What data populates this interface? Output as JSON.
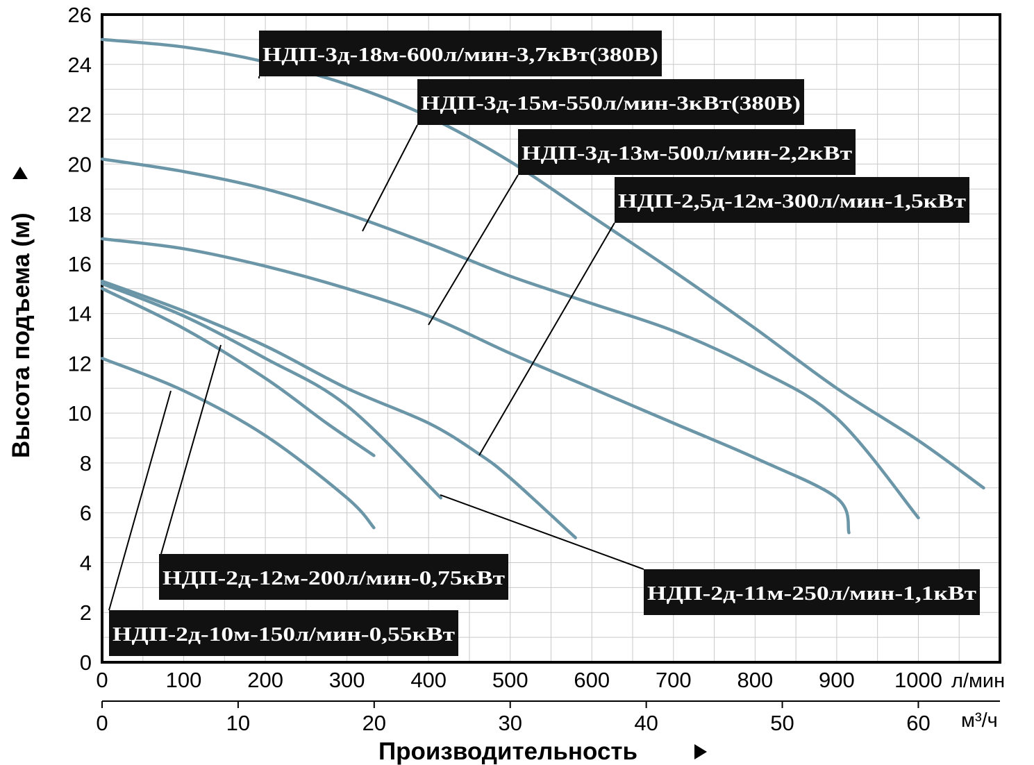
{
  "chart_data": {
    "type": "line",
    "xlabel": "Производительность",
    "ylabel": "Высота подъема (м)",
    "x_unit": "л/мин",
    "x2_unit": "м³/ч",
    "xlim": [
      0,
      1100
    ],
    "ylim": [
      0,
      26
    ],
    "x_ticks": [
      "0",
      "100",
      "200",
      "300",
      "400",
      "500",
      "600",
      "700",
      "800",
      "900",
      "1000"
    ],
    "x2_ticks": [
      "0",
      "10",
      "20",
      "30",
      "40",
      "50",
      "60"
    ],
    "y_ticks": [
      "0",
      "2",
      "4",
      "6",
      "8",
      "10",
      "12",
      "14",
      "16",
      "18",
      "20",
      "22",
      "24",
      "26"
    ],
    "grid": true,
    "series": [
      {
        "name": "НДП-3д-18м-600л/мин-3,7кВт(380В)",
        "points": [
          [
            0,
            25
          ],
          [
            100,
            24.7
          ],
          [
            200,
            24.1
          ],
          [
            300,
            23.2
          ],
          [
            400,
            21.9
          ],
          [
            500,
            20.1
          ],
          [
            600,
            17.9
          ],
          [
            700,
            15.7
          ],
          [
            800,
            13.4
          ],
          [
            900,
            11.0
          ],
          [
            1000,
            8.9
          ],
          [
            1080,
            7.0
          ]
        ]
      },
      {
        "name": "НДП-3д-15м-550л/мин-3кВт(380В)",
        "points": [
          [
            0,
            20.2
          ],
          [
            100,
            19.7
          ],
          [
            200,
            19.0
          ],
          [
            300,
            18.0
          ],
          [
            400,
            16.8
          ],
          [
            500,
            15.5
          ],
          [
            600,
            14.4
          ],
          [
            700,
            13.3
          ],
          [
            800,
            11.8
          ],
          [
            900,
            9.8
          ],
          [
            1000,
            5.8
          ]
        ]
      },
      {
        "name": "НДП-3д-13м-500л/мин-2,2кВт",
        "points": [
          [
            0,
            17
          ],
          [
            100,
            16.6
          ],
          [
            200,
            15.9
          ],
          [
            300,
            15.0
          ],
          [
            400,
            13.9
          ],
          [
            500,
            12.4
          ],
          [
            600,
            11.0
          ],
          [
            700,
            9.6
          ],
          [
            800,
            8.2
          ],
          [
            900,
            6.6
          ],
          [
            915,
            5.2
          ]
        ]
      },
      {
        "name": "НДП-2,5д-12м-300л/мин-1,5кВт",
        "points": [
          [
            0,
            15.3
          ],
          [
            100,
            14.1
          ],
          [
            200,
            12.7
          ],
          [
            300,
            11.0
          ],
          [
            400,
            9.6
          ],
          [
            460,
            8.4
          ],
          [
            500,
            7.4
          ],
          [
            580,
            5.0
          ]
        ]
      },
      {
        "name": "НДП-2д-11м-250л/мин-1,1кВт",
        "points": [
          [
            0,
            15.2
          ],
          [
            100,
            13.9
          ],
          [
            200,
            12.2
          ],
          [
            300,
            10.3
          ],
          [
            415,
            6.6
          ]
        ]
      },
      {
        "name": "НДП-2д-12м-200л/мин-0,75кВт",
        "points": [
          [
            0,
            15.0
          ],
          [
            100,
            13.4
          ],
          [
            200,
            11.4
          ],
          [
            275,
            9.6
          ],
          [
            333,
            8.3
          ]
        ]
      },
      {
        "name": "НДП-2д-10м-150л/мин-0,55кВт",
        "points": [
          [
            0,
            12.2
          ],
          [
            100,
            10.9
          ],
          [
            200,
            9.1
          ],
          [
            300,
            6.6
          ],
          [
            333,
            5.4
          ]
        ]
      }
    ],
    "labels": [
      {
        "text": "НДП-3д-18м-600л/мин-3,7кВт(380В)"
      },
      {
        "text": "НДП-3д-15м-550л/мин-3кВт(380В)"
      },
      {
        "text": "НДП-3д-13м-500л/мин-2,2кВт"
      },
      {
        "text": "НДП-2,5д-12м-300л/мин-1,5кВт"
      },
      {
        "text": "НДП-2д-12м-200л/мин-0,75кВт"
      },
      {
        "text": "НДП-2д-11м-250л/мин-1,1кВт"
      },
      {
        "text": "НДП-2д-10м-150л/мин-0,55кВт"
      }
    ],
    "colors": {
      "curve": "#6b96a8",
      "label_bg": "#111111",
      "label_text": "#ffffff",
      "grid": "#c9c9c9"
    }
  }
}
